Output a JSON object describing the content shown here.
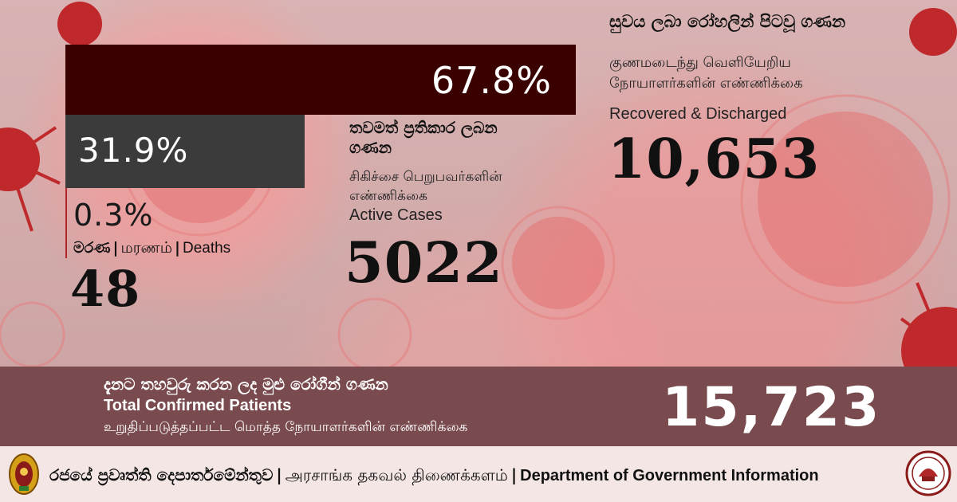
{
  "recovered": {
    "percent": "67.8%",
    "label_si": "සුවය ලබා රෝහලින් පිටවූ ගණන",
    "label_ta": "குணமடைந்து வெளியேறிய நோயாளர்களின் எண்ணிக்கை",
    "label_en": "Recovered & Discharged",
    "count": "10,653"
  },
  "active": {
    "percent": "31.9%",
    "label_si": "තවමත් ප්‍රතිකාර ලබන ගණන",
    "label_ta": "சிகிச்சை பெறுபவர்களின் எண்ணிக்கை",
    "label_en": "Active Cases",
    "count": "5022"
  },
  "deaths": {
    "percent": "0.3%",
    "label_si": "මරණ",
    "label_ta": "மரணம்",
    "label_en": "Deaths",
    "separator": "|",
    "count": "48"
  },
  "total": {
    "label_si": "දැනට තහවුරු කරන ලද මුළු රෝගීන් ගණන",
    "label_en": "Total Confirmed Patients",
    "label_ta": "உறுதிப்படுத்தப்பட்ட மொத்த நோயாளர்களின் எண்ணிக்கை",
    "count": "15,723"
  },
  "footer": {
    "dept_si": "රජයේ ප්‍රවෘත්ති දෙපාර්තමේන්තුව",
    "dept_ta": "அரசாங்க தகவல் திணைக்களம்",
    "dept_en": "Department of Government Information",
    "separator": "|"
  },
  "colors": {
    "recovered_bar": "#3a0000",
    "active_bar": "#3b3b3b",
    "deaths_marker": "#b0272a",
    "band": "#7a4b4e",
    "footer_bg": "#f4e6e4"
  },
  "icons": {
    "left_emblem": "sri-lanka-emblem-icon",
    "right_emblem": "department-seal-icon",
    "background": "virus-icon"
  }
}
